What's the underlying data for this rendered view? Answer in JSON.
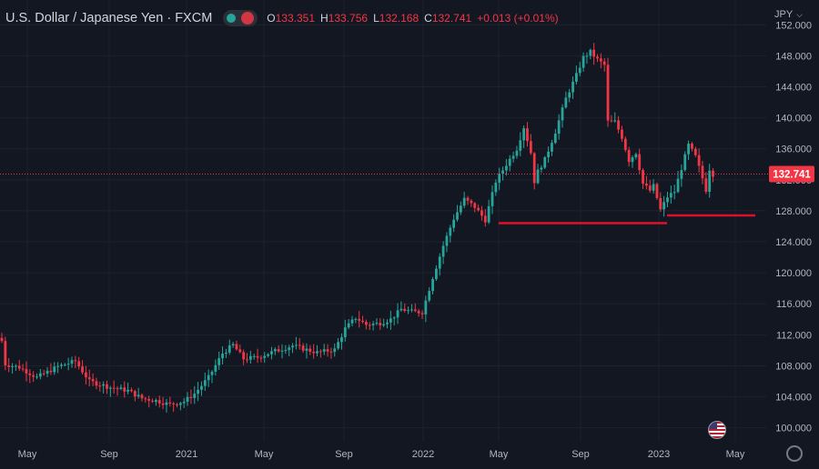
{
  "legend": {
    "symbol": "U.S. Dollar / Japanese Yen · FXCM",
    "open_label": "O",
    "open": "133.351",
    "high_label": "H",
    "high": "133.756",
    "low_label": "L",
    "low": "132.168",
    "close_label": "C",
    "close": "132.741",
    "change": "+0.013 (+0.01%)"
  },
  "currency_menu": {
    "label": "JPY",
    "chevron": "chevron-down-icon"
  },
  "icons": {
    "settings": "gear-icon",
    "event": "us-flag-icon"
  },
  "colors": {
    "up": "#26a69a",
    "down": "#f23645",
    "background": "#131722",
    "grid": "#1e222d",
    "annotation": "#e0102a"
  },
  "chart_data": {
    "type": "candlestick",
    "interval": "weekly",
    "y_ticks": [
      "152.000",
      "148.000",
      "144.000",
      "140.000",
      "136.000",
      "132.000",
      "128.000",
      "124.000",
      "120.000",
      "116.000",
      "112.000",
      "108.000",
      "104.000",
      "100.000"
    ],
    "ylim": [
      98.2,
      155.2
    ],
    "x_ticks": [
      "May",
      "Sep",
      "2021",
      "May",
      "Sep",
      "2022",
      "May",
      "Sep",
      "2023",
      "May"
    ],
    "last_price": "132.741",
    "grid": true,
    "price_path": [
      [
        0,
        111.2
      ],
      [
        1,
        108.2
      ],
      [
        5,
        107.8
      ],
      [
        10,
        106.5
      ],
      [
        16,
        107.9
      ],
      [
        21,
        108.6
      ],
      [
        25,
        106.0
      ],
      [
        31,
        105.2
      ],
      [
        36,
        104.8
      ],
      [
        40,
        103.8
      ],
      [
        44,
        103.5
      ],
      [
        48,
        103.0
      ],
      [
        52,
        103.4
      ],
      [
        55,
        104.4
      ],
      [
        59,
        106.5
      ],
      [
        63,
        109.6
      ],
      [
        66,
        110.7
      ],
      [
        69,
        108.9
      ],
      [
        73,
        109.1
      ],
      [
        78,
        109.9
      ],
      [
        83,
        110.6
      ],
      [
        86,
        110.2
      ],
      [
        90,
        109.7
      ],
      [
        95,
        110.1
      ],
      [
        98,
        112.8
      ],
      [
        101,
        114.2
      ],
      [
        104,
        113.3
      ],
      [
        108,
        113.5
      ],
      [
        111,
        114.0
      ],
      [
        114,
        115.3
      ],
      [
        117,
        115.0
      ],
      [
        120,
        114.9
      ],
      [
        123,
        119.4
      ],
      [
        126,
        123.5
      ],
      [
        129,
        127.0
      ],
      [
        132,
        129.5
      ],
      [
        135,
        128.5
      ],
      [
        138,
        126.8
      ],
      [
        141,
        131.8
      ],
      [
        144,
        134.0
      ],
      [
        147,
        136.0
      ],
      [
        149,
        138.8
      ],
      [
        151,
        135.5
      ],
      [
        152,
        131.8
      ],
      [
        153,
        133.1
      ],
      [
        155,
        134.6
      ],
      [
        158,
        138.2
      ],
      [
        161,
        142.5
      ],
      [
        164,
        145.5
      ],
      [
        166,
        147.8
      ],
      [
        168,
        148.5
      ],
      [
        170,
        147.5
      ],
      [
        172,
        146.8
      ],
      [
        173,
        139.5
      ],
      [
        175,
        139.5
      ],
      [
        177,
        137.5
      ],
      [
        179,
        134.5
      ],
      [
        181,
        135.5
      ],
      [
        183,
        131.5
      ],
      [
        185,
        130.6
      ],
      [
        186,
        131.2
      ],
      [
        188,
        128.1
      ],
      [
        190,
        129.8
      ],
      [
        192,
        130.5
      ],
      [
        194,
        133.5
      ],
      [
        196,
        136.5
      ],
      [
        198,
        135.0
      ],
      [
        200,
        132.2
      ],
      [
        201,
        130.7
      ],
      [
        202,
        133.4
      ],
      [
        203,
        132.7
      ]
    ]
  },
  "annotations": {
    "support_lines": [
      {
        "from": [
          "2022-05",
          126.4
        ],
        "to": [
          "2022-12",
          126.4
        ]
      },
      {
        "from": [
          "2022-12",
          127.4
        ],
        "to": [
          "2023-05",
          127.4
        ]
      }
    ]
  }
}
